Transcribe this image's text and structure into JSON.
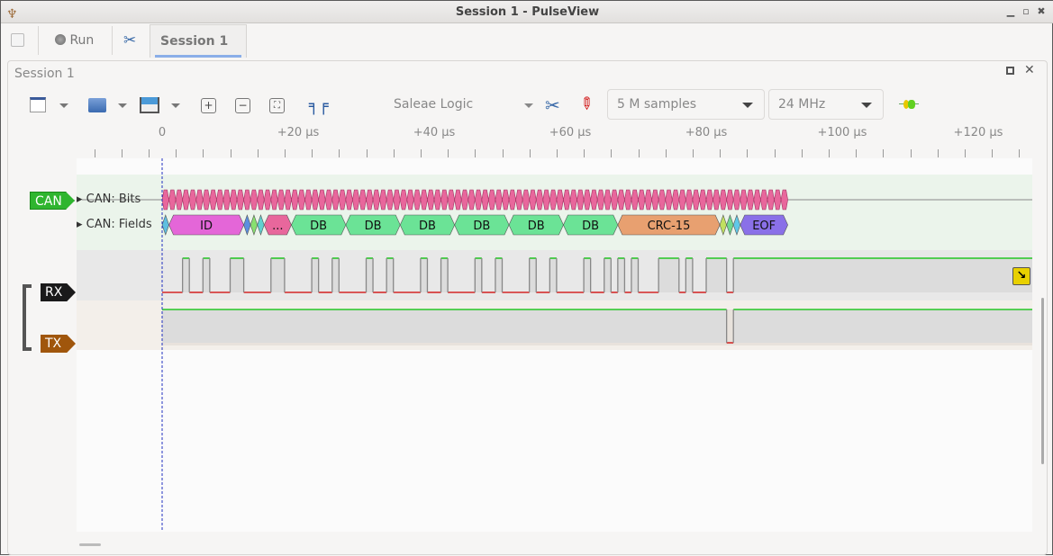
{
  "window": {
    "title": "Session 1 - PulseView",
    "controls": [
      "minimize",
      "maximize",
      "close"
    ]
  },
  "tabs": {
    "run_label": "Run",
    "session_tab": "Session 1",
    "close_glyph": "✕"
  },
  "panel": {
    "title": "Session 1"
  },
  "toolbar": {
    "device": "Saleae Logic",
    "samples": "5 M samples",
    "samplerate": "24 MHz",
    "icons": [
      "new-view-icon",
      "open-icon",
      "save-icon",
      "zoom-in-icon",
      "zoom-out-icon",
      "zoom-fit-icon",
      "cursors-icon",
      "device-config-icon",
      "probe-icon",
      "decoder-icon"
    ]
  },
  "ruler": {
    "labels": [
      {
        "t": 0,
        "text": "0"
      },
      {
        "t": 20,
        "text": "+20 µs"
      },
      {
        "t": 40,
        "text": "+40 µs"
      },
      {
        "t": 60,
        "text": "+60 µs"
      },
      {
        "t": 80,
        "text": "+80 µs"
      },
      {
        "t": 100,
        "text": "+100 µs"
      },
      {
        "t": 120,
        "text": "+120 µs"
      }
    ]
  },
  "traces": {
    "can_tag": "CAN",
    "bits_label": "CAN: Bits",
    "fields_label": "CAN: Fields",
    "rx_tag": "RX",
    "tx_tag": "TX",
    "colors": {
      "can": "#2fb52f",
      "rx": "#1a1a1a",
      "tx": "#a0560c",
      "bits": "#e8679c",
      "high": "#00c000",
      "low": "#d00000"
    },
    "bits_end_us": 92,
    "fields": [
      {
        "s": 0,
        "e": 1,
        "text": "",
        "color": "#5fbfe0"
      },
      {
        "s": 1,
        "e": 12,
        "text": "ID",
        "color": "#e466d8"
      },
      {
        "s": 12,
        "e": 13,
        "text": "",
        "color": "#5c8fe0"
      },
      {
        "s": 13,
        "e": 14,
        "text": "",
        "color": "#88e070"
      },
      {
        "s": 14,
        "e": 15,
        "text": "",
        "color": "#5fd0d0"
      },
      {
        "s": 15,
        "e": 19,
        "text": "...",
        "color": "#e8679c"
      },
      {
        "s": 19,
        "e": 27,
        "text": "DB",
        "color": "#6be396"
      },
      {
        "s": 27,
        "e": 35,
        "text": "DB",
        "color": "#6be396"
      },
      {
        "s": 35,
        "e": 43,
        "text": "DB",
        "color": "#6be396"
      },
      {
        "s": 43,
        "e": 51,
        "text": "DB",
        "color": "#6be396"
      },
      {
        "s": 51,
        "e": 59,
        "text": "DB",
        "color": "#6be396"
      },
      {
        "s": 59,
        "e": 67,
        "text": "DB",
        "color": "#6be396"
      },
      {
        "s": 67,
        "e": 82,
        "text": "CRC-15",
        "color": "#e8a070"
      },
      {
        "s": 82,
        "e": 83,
        "text": "",
        "color": "#c0e060"
      },
      {
        "s": 83,
        "e": 84,
        "text": "",
        "color": "#70d890"
      },
      {
        "s": 84,
        "e": 85,
        "text": "",
        "color": "#60c8e8"
      },
      {
        "s": 85,
        "e": 92,
        "text": "EOF",
        "color": "#8a70e8"
      }
    ],
    "rx_high": [
      [
        3,
        4
      ],
      [
        6,
        7
      ],
      [
        10,
        12
      ],
      [
        16,
        18
      ],
      [
        22,
        23
      ],
      [
        25,
        26
      ],
      [
        30,
        31
      ],
      [
        33,
        34
      ],
      [
        38,
        39
      ],
      [
        41,
        42
      ],
      [
        46,
        47
      ],
      [
        49,
        50
      ],
      [
        54,
        55
      ],
      [
        57,
        58
      ],
      [
        62,
        63
      ],
      [
        65,
        66
      ],
      [
        67,
        68
      ],
      [
        69,
        70
      ],
      [
        73,
        76
      ],
      [
        77,
        78
      ],
      [
        80,
        83
      ],
      [
        84,
        128
      ]
    ],
    "tx_low": [
      [
        83,
        84
      ]
    ]
  }
}
